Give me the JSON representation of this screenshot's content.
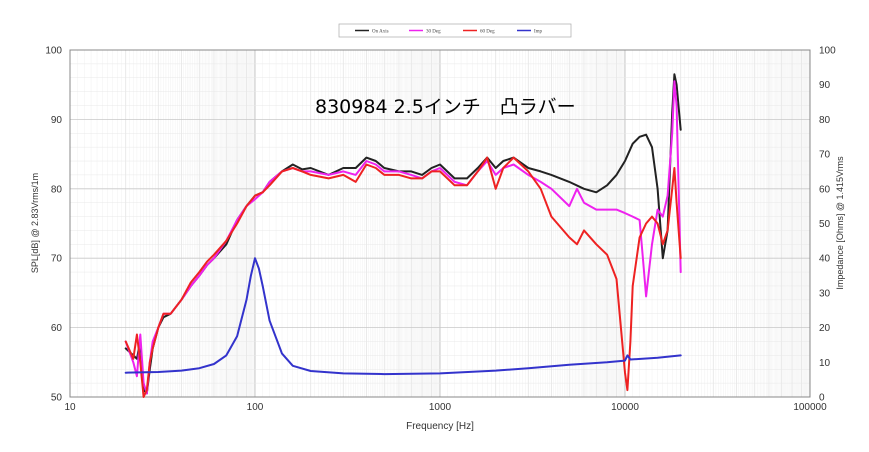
{
  "chart_data": {
    "type": "line",
    "overlay_title": "830984 2.5インチ　凸ラバー",
    "xlabel": "Frequency [Hz]",
    "ylabel_left": "SPL[dB] @ 2.83Vrms/1m",
    "ylabel_right": "Impedance [Ohms] @ 1.415Vrms",
    "x_scale": "log",
    "xlim": [
      10,
      100000
    ],
    "ylim_left": [
      50,
      100
    ],
    "ylim_right": [
      0,
      100
    ],
    "x_ticks": [
      "10",
      "100",
      "1000",
      "10000",
      "100000"
    ],
    "y_ticks_left": [
      "50",
      "60",
      "70",
      "80",
      "90",
      "100"
    ],
    "y_ticks_right": [
      "0",
      "10",
      "20",
      "30",
      "40",
      "50",
      "60",
      "70",
      "80",
      "90",
      "100"
    ],
    "grid": true,
    "legend_position": "top-center",
    "series": [
      {
        "name": "On Axis",
        "color": "#222222",
        "axis": "left",
        "points": [
          [
            20,
            57
          ],
          [
            22,
            56
          ],
          [
            23,
            55.5
          ],
          [
            24,
            58
          ],
          [
            25,
            51
          ],
          [
            26,
            50.5
          ],
          [
            27,
            54
          ],
          [
            28,
            57
          ],
          [
            30,
            60
          ],
          [
            32,
            61.5
          ],
          [
            35,
            62
          ],
          [
            40,
            64
          ],
          [
            45,
            66
          ],
          [
            50,
            67.5
          ],
          [
            55,
            69
          ],
          [
            60,
            70
          ],
          [
            70,
            72
          ],
          [
            80,
            75.5
          ],
          [
            90,
            77.5
          ],
          [
            100,
            79
          ],
          [
            110,
            79.5
          ],
          [
            120,
            81
          ],
          [
            140,
            82.5
          ],
          [
            160,
            83.5
          ],
          [
            180,
            82.8
          ],
          [
            200,
            83
          ],
          [
            250,
            82
          ],
          [
            300,
            83
          ],
          [
            350,
            83
          ],
          [
            400,
            84.5
          ],
          [
            450,
            84
          ],
          [
            500,
            83
          ],
          [
            600,
            82.5
          ],
          [
            700,
            82.5
          ],
          [
            800,
            82
          ],
          [
            900,
            83
          ],
          [
            1000,
            83.5
          ],
          [
            1200,
            81.5
          ],
          [
            1400,
            81.5
          ],
          [
            1600,
            83
          ],
          [
            1800,
            84.5
          ],
          [
            2000,
            83
          ],
          [
            2200,
            84
          ],
          [
            2500,
            84.5
          ],
          [
            3000,
            83
          ],
          [
            3500,
            82.5
          ],
          [
            4000,
            82
          ],
          [
            5000,
            81
          ],
          [
            6000,
            80
          ],
          [
            7000,
            79.5
          ],
          [
            8000,
            80.5
          ],
          [
            9000,
            82
          ],
          [
            10000,
            84
          ],
          [
            11000,
            86.5
          ],
          [
            12000,
            87.5
          ],
          [
            13000,
            87.8
          ],
          [
            14000,
            86
          ],
          [
            15000,
            80
          ],
          [
            16000,
            70
          ],
          [
            17000,
            74
          ],
          [
            18000,
            91
          ],
          [
            18500,
            96.5
          ],
          [
            19000,
            95
          ],
          [
            20000,
            88.5
          ]
        ]
      },
      {
        "name": "30 Deg",
        "color": "#ee22ee",
        "axis": "left",
        "points": [
          [
            20,
            58
          ],
          [
            22,
            55
          ],
          [
            23,
            53
          ],
          [
            24,
            59
          ],
          [
            25,
            52
          ],
          [
            26,
            50.5
          ],
          [
            27,
            55
          ],
          [
            28,
            58
          ],
          [
            30,
            60
          ],
          [
            32,
            62
          ],
          [
            35,
            62
          ],
          [
            40,
            64
          ],
          [
            45,
            66
          ],
          [
            50,
            67.5
          ],
          [
            55,
            69
          ],
          [
            60,
            70
          ],
          [
            70,
            72.5
          ],
          [
            80,
            75.5
          ],
          [
            90,
            77.5
          ],
          [
            100,
            78.5
          ],
          [
            110,
            79.5
          ],
          [
            120,
            81
          ],
          [
            140,
            82.5
          ],
          [
            160,
            83
          ],
          [
            180,
            82.5
          ],
          [
            200,
            82.5
          ],
          [
            250,
            82
          ],
          [
            300,
            82.5
          ],
          [
            350,
            82
          ],
          [
            400,
            84
          ],
          [
            450,
            83.5
          ],
          [
            500,
            82.5
          ],
          [
            600,
            82.5
          ],
          [
            700,
            82
          ],
          [
            800,
            81.5
          ],
          [
            900,
            82.5
          ],
          [
            1000,
            83
          ],
          [
            1200,
            81
          ],
          [
            1400,
            80.5
          ],
          [
            1600,
            82.5
          ],
          [
            1800,
            84
          ],
          [
            2000,
            82
          ],
          [
            2200,
            83
          ],
          [
            2500,
            83.5
          ],
          [
            3000,
            82
          ],
          [
            3500,
            81
          ],
          [
            4000,
            80
          ],
          [
            5000,
            77.5
          ],
          [
            5500,
            80
          ],
          [
            6000,
            78
          ],
          [
            7000,
            77
          ],
          [
            8000,
            77
          ],
          [
            9000,
            77
          ],
          [
            10000,
            76.5
          ],
          [
            11000,
            76
          ],
          [
            12000,
            75.5
          ],
          [
            12500,
            70
          ],
          [
            13000,
            64.5
          ],
          [
            14000,
            72
          ],
          [
            15000,
            77
          ],
          [
            16000,
            76
          ],
          [
            17000,
            79
          ],
          [
            18000,
            88
          ],
          [
            18500,
            95.5
          ],
          [
            19000,
            92
          ],
          [
            20000,
            68
          ]
        ]
      },
      {
        "name": "60 Deg",
        "color": "#ee2222",
        "axis": "left",
        "points": [
          [
            20,
            58
          ],
          [
            22,
            55.5
          ],
          [
            23,
            59
          ],
          [
            24,
            55
          ],
          [
            25,
            50
          ],
          [
            26,
            51
          ],
          [
            27,
            55
          ],
          [
            28,
            57
          ],
          [
            30,
            60
          ],
          [
            32,
            62
          ],
          [
            35,
            62
          ],
          [
            40,
            64
          ],
          [
            45,
            66.5
          ],
          [
            50,
            68
          ],
          [
            55,
            69.5
          ],
          [
            60,
            70.5
          ],
          [
            70,
            72.5
          ],
          [
            80,
            75
          ],
          [
            90,
            77.5
          ],
          [
            100,
            79
          ],
          [
            110,
            79.5
          ],
          [
            120,
            80.5
          ],
          [
            140,
            82.5
          ],
          [
            160,
            83
          ],
          [
            180,
            82.5
          ],
          [
            200,
            82
          ],
          [
            250,
            81.5
          ],
          [
            300,
            82
          ],
          [
            350,
            81
          ],
          [
            400,
            83.5
          ],
          [
            450,
            83
          ],
          [
            500,
            82
          ],
          [
            600,
            82
          ],
          [
            700,
            81.5
          ],
          [
            800,
            81.5
          ],
          [
            900,
            82.5
          ],
          [
            1000,
            82.5
          ],
          [
            1200,
            80.5
          ],
          [
            1400,
            80.5
          ],
          [
            1600,
            82.5
          ],
          [
            1800,
            84.5
          ],
          [
            2000,
            80
          ],
          [
            2200,
            83
          ],
          [
            2500,
            84.5
          ],
          [
            3000,
            82.5
          ],
          [
            3500,
            80
          ],
          [
            4000,
            76
          ],
          [
            5000,
            73
          ],
          [
            5500,
            72
          ],
          [
            6000,
            74
          ],
          [
            7000,
            72
          ],
          [
            8000,
            70.5
          ],
          [
            9000,
            67
          ],
          [
            9500,
            60
          ],
          [
            10000,
            53.5
          ],
          [
            10300,
            51
          ],
          [
            10700,
            58
          ],
          [
            11000,
            66
          ],
          [
            12000,
            73
          ],
          [
            13000,
            75
          ],
          [
            14000,
            76
          ],
          [
            15000,
            75
          ],
          [
            16000,
            72
          ],
          [
            17000,
            74
          ],
          [
            18000,
            80
          ],
          [
            18500,
            83
          ],
          [
            19000,
            78
          ],
          [
            20000,
            70
          ]
        ]
      },
      {
        "name": "Imp",
        "color": "#3333cc",
        "axis": "right",
        "points": [
          [
            20,
            7
          ],
          [
            30,
            7.2
          ],
          [
            40,
            7.6
          ],
          [
            50,
            8.3
          ],
          [
            60,
            9.5
          ],
          [
            70,
            12
          ],
          [
            80,
            17.5
          ],
          [
            90,
            28
          ],
          [
            95,
            35
          ],
          [
            100,
            40
          ],
          [
            105,
            37
          ],
          [
            110,
            32
          ],
          [
            120,
            22
          ],
          [
            140,
            12.5
          ],
          [
            160,
            9
          ],
          [
            200,
            7.5
          ],
          [
            300,
            6.8
          ],
          [
            500,
            6.6
          ],
          [
            1000,
            6.8
          ],
          [
            2000,
            7.6
          ],
          [
            3000,
            8.3
          ],
          [
            5000,
            9.3
          ],
          [
            8000,
            10
          ],
          [
            10000,
            10.5
          ],
          [
            10300,
            12
          ],
          [
            10700,
            10.8
          ],
          [
            15000,
            11.3
          ],
          [
            20000,
            12
          ]
        ]
      }
    ]
  }
}
